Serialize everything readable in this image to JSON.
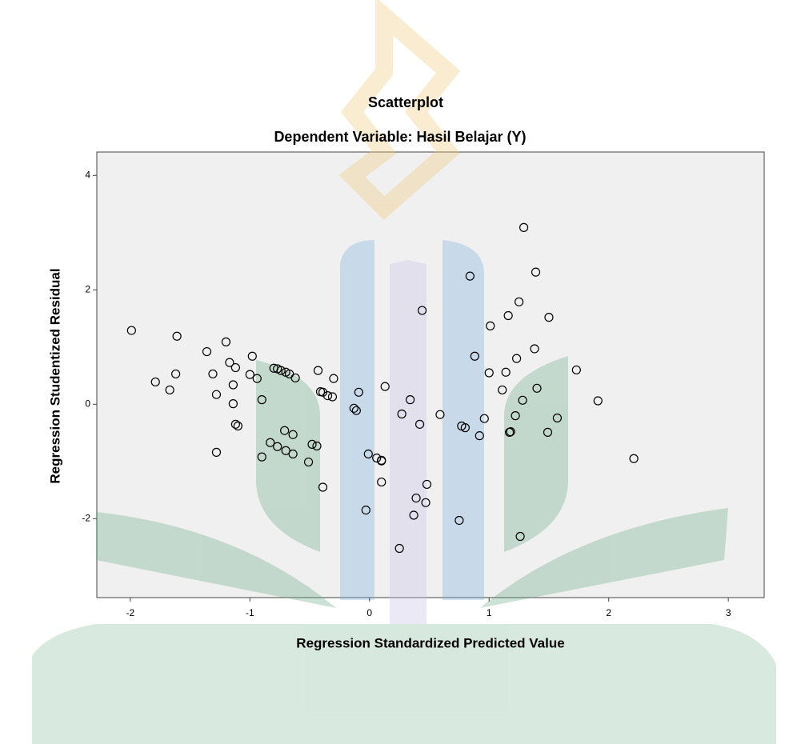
{
  "chart_data": {
    "type": "scatter",
    "title": "Scatterplot",
    "subtitle": "Dependent Variable: Hasil Belajar (Y)",
    "x_label": "Regression Standardized Predicted Value",
    "y_label": "Regression Studentized Residual",
    "color": "#000000",
    "background": "#f0f0f0",
    "xlim": [
      -2.28,
      3.3
    ],
    "ylim": [
      -3.38,
      4.41
    ],
    "xticks": [
      -2,
      -1,
      0,
      1,
      2,
      3
    ],
    "yticks": [
      -2,
      0,
      2,
      4
    ],
    "x": [
      -1.99,
      -1.61,
      -1.79,
      -1.67,
      -1.62,
      -1.36,
      -1.31,
      -1.28,
      -1.28,
      -1.2,
      -1.17,
      -1.12,
      -1.14,
      -1.14,
      -1.12,
      -1.1,
      -0.98,
      -1.0,
      -0.94,
      -0.9,
      -0.9,
      -0.83,
      -0.8,
      -0.77,
      -0.74,
      -0.7,
      -0.67,
      -0.62,
      -0.77,
      -0.71,
      -0.7,
      -0.64,
      -0.64,
      -0.51,
      -0.48,
      -0.44,
      -0.43,
      -0.41,
      -0.39,
      -0.35,
      -0.31,
      -0.3,
      -0.39,
      -0.13,
      -0.11,
      -0.09,
      -0.03,
      -0.01,
      0.06,
      0.1,
      0.1,
      0.1,
      0.13,
      0.27,
      0.25,
      0.34,
      0.37,
      0.39,
      0.42,
      0.44,
      0.48,
      0.47,
      0.59,
      0.75,
      0.77,
      0.8,
      0.84,
      0.88,
      0.92,
      0.96,
      1.01,
      1.0,
      1.11,
      1.14,
      1.16,
      1.17,
      1.18,
      1.22,
      1.23,
      1.25,
      1.26,
      1.28,
      1.29,
      1.38,
      1.39,
      1.4,
      1.49,
      1.5,
      1.57,
      1.73,
      1.91,
      2.21
    ],
    "values": [
      1.29,
      1.19,
      0.39,
      0.25,
      0.53,
      0.92,
      0.53,
      0.17,
      -0.84,
      1.09,
      0.73,
      0.64,
      0.34,
      0.01,
      -0.35,
      -0.38,
      0.84,
      0.52,
      0.45,
      0.08,
      -0.92,
      -0.67,
      0.63,
      0.62,
      0.59,
      0.56,
      0.53,
      0.46,
      -0.74,
      -0.46,
      -0.81,
      -0.53,
      -0.87,
      -1.01,
      -0.7,
      -0.73,
      0.59,
      0.22,
      0.21,
      0.15,
      0.13,
      0.45,
      -1.45,
      -0.07,
      -0.11,
      0.21,
      -1.85,
      -0.87,
      -0.94,
      -0.98,
      -0.99,
      -1.36,
      0.31,
      -0.17,
      -2.52,
      0.08,
      -1.94,
      -1.64,
      -0.35,
      1.64,
      -1.4,
      -1.72,
      -0.18,
      -2.03,
      -0.38,
      -0.41,
      2.24,
      0.84,
      -0.55,
      -0.25,
      1.37,
      0.55,
      0.25,
      0.56,
      1.55,
      -0.49,
      -0.48,
      -0.2,
      0.8,
      1.79,
      -2.31,
      0.07,
      3.09,
      0.97,
      2.31,
      0.28,
      -0.49,
      1.52,
      -0.24,
      0.6,
      0.06,
      -0.95
    ]
  }
}
